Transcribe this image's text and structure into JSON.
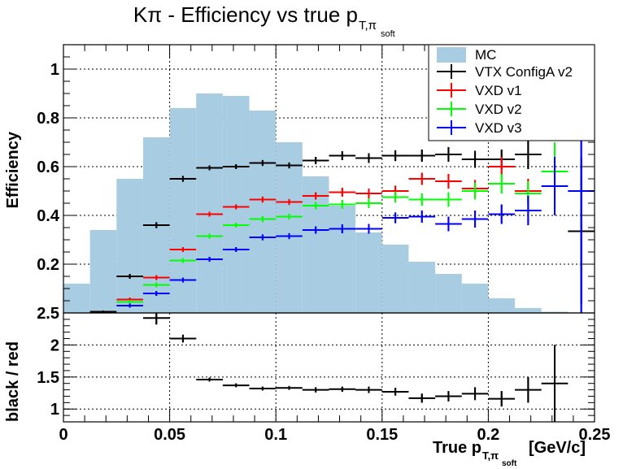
{
  "chart_data": [
    {
      "type": "bar",
      "title": "Kπ - Efficiency vs true p",
      "title_sub": "T,π",
      "title_subsub": "soft",
      "ylabel": "Efficiency",
      "xlim": [
        0,
        0.25
      ],
      "ylim": [
        0,
        1.1
      ],
      "yticks": [
        0.2,
        0.4,
        0.6,
        0.8,
        1
      ],
      "ytick_labels": [
        "0.2",
        "0.4",
        "0.6",
        "0.8",
        "1"
      ],
      "grid": true,
      "legend_position": "top-right",
      "histogram": {
        "name": "MC",
        "color": "#a8cce2",
        "bin_width": 0.0125,
        "x": [
          0.00625,
          0.01875,
          0.03125,
          0.04375,
          0.05625,
          0.06875,
          0.08125,
          0.09375,
          0.10625,
          0.11875,
          0.13125,
          0.14375,
          0.15625,
          0.16875,
          0.18125,
          0.19375,
          0.20625,
          0.21875,
          0.23125
        ],
        "values": [
          0.12,
          0.34,
          0.55,
          0.72,
          0.84,
          0.9,
          0.89,
          0.83,
          0.7,
          0.56,
          0.44,
          0.33,
          0.28,
          0.21,
          0.16,
          0.12,
          0.06,
          0.02,
          0.005
        ]
      },
      "series": [
        {
          "name": "VTX ConfigA v2",
          "color": "#000000",
          "x": [
            0.00625,
            0.01875,
            0.03125,
            0.04375,
            0.05625,
            0.06875,
            0.08125,
            0.09375,
            0.10625,
            0.11875,
            0.13125,
            0.14375,
            0.15625,
            0.16875,
            0.18125,
            0.19375,
            0.20625,
            0.21875,
            0.23125,
            0.24375
          ],
          "values": [
            null,
            0.005,
            0.15,
            0.36,
            0.55,
            0.595,
            0.6,
            0.615,
            0.605,
            0.625,
            0.645,
            0.635,
            0.645,
            0.645,
            0.65,
            0.63,
            0.63,
            0.65,
            null,
            0.335
          ],
          "yerr": [
            0,
            0.005,
            0.01,
            0.012,
            0.012,
            0.01,
            0.01,
            0.012,
            0.012,
            0.015,
            0.018,
            0.02,
            0.022,
            0.025,
            0.03,
            0.035,
            0.04,
            0.06,
            0,
            0.3
          ]
        },
        {
          "name": "VXD v1",
          "color": "#ff0000",
          "x": [
            0.03125,
            0.04375,
            0.05625,
            0.06875,
            0.08125,
            0.09375,
            0.10625,
            0.11875,
            0.13125,
            0.14375,
            0.15625,
            0.16875,
            0.18125,
            0.19375,
            0.20625,
            0.21875
          ],
          "values": [
            0.055,
            0.145,
            0.26,
            0.405,
            0.435,
            0.465,
            0.455,
            0.48,
            0.495,
            0.49,
            0.5,
            0.55,
            0.54,
            0.51,
            0.6,
            0.5
          ],
          "yerr": [
            0.008,
            0.01,
            0.01,
            0.01,
            0.01,
            0.012,
            0.012,
            0.015,
            0.018,
            0.02,
            0.022,
            0.025,
            0.03,
            0.035,
            0.04,
            0.05
          ]
        },
        {
          "name": "VXD v2",
          "color": "#00ff00",
          "x": [
            0.03125,
            0.04375,
            0.05625,
            0.06875,
            0.08125,
            0.09375,
            0.10625,
            0.11875,
            0.13125,
            0.14375,
            0.15625,
            0.16875,
            0.18125,
            0.19375,
            0.20625,
            0.21875,
            0.23125
          ],
          "values": [
            0.045,
            0.115,
            0.215,
            0.315,
            0.36,
            0.385,
            0.395,
            0.44,
            0.445,
            0.45,
            0.475,
            0.465,
            0.465,
            0.5,
            0.53,
            0.49,
            0.58
          ],
          "yerr": [
            0.008,
            0.01,
            0.01,
            0.01,
            0.01,
            0.012,
            0.012,
            0.015,
            0.018,
            0.02,
            0.022,
            0.025,
            0.03,
            0.035,
            0.04,
            0.05,
            0.12
          ]
        },
        {
          "name": "VXD v3",
          "color": "#0000ff",
          "x": [
            0.03125,
            0.04375,
            0.05625,
            0.06875,
            0.08125,
            0.09375,
            0.10625,
            0.11875,
            0.13125,
            0.14375,
            0.15625,
            0.16875,
            0.18125,
            0.19375,
            0.20625,
            0.21875,
            0.23125,
            0.24375
          ],
          "values": [
            0.03,
            0.08,
            0.135,
            0.22,
            0.26,
            0.31,
            0.315,
            0.34,
            0.345,
            0.345,
            0.39,
            0.395,
            0.365,
            0.385,
            0.405,
            0.42,
            0.52,
            0.5
          ],
          "yerr": [
            0.008,
            0.01,
            0.01,
            0.01,
            0.01,
            0.012,
            0.012,
            0.015,
            0.018,
            0.02,
            0.022,
            0.025,
            0.03,
            0.035,
            0.04,
            0.06,
            0.12,
            0.5
          ]
        }
      ]
    },
    {
      "type": "scatter",
      "ylabel": "black / red",
      "xlabel": "True p",
      "xlabel_sub": "T,π",
      "xlabel_subsub": "soft",
      "xlabel_unit": "[GeV/c]",
      "xlim": [
        0,
        0.25
      ],
      "ylim": [
        0.8,
        2.5
      ],
      "xticks": [
        0,
        0.05,
        0.1,
        0.15,
        0.2,
        0.25
      ],
      "xtick_labels": [
        "0",
        "0.05",
        "0.1",
        "0.15",
        "0.2",
        "0.25"
      ],
      "yticks": [
        1,
        1.5,
        2,
        2.5
      ],
      "ytick_labels": [
        "1",
        "1.5",
        "2",
        "2.5"
      ],
      "grid": true,
      "series": [
        {
          "name": "black / red",
          "color": "#000000",
          "x": [
            0.04375,
            0.05625,
            0.06875,
            0.08125,
            0.09375,
            0.10625,
            0.11875,
            0.13125,
            0.14375,
            0.15625,
            0.16875,
            0.18125,
            0.19375,
            0.20625,
            0.21875,
            0.23125
          ],
          "values": [
            2.42,
            2.1,
            1.46,
            1.37,
            1.32,
            1.33,
            1.3,
            1.31,
            1.3,
            1.27,
            1.17,
            1.2,
            1.24,
            1.16,
            1.3,
            1.4
          ],
          "yerr": [
            0.1,
            0.06,
            0.03,
            0.03,
            0.03,
            0.03,
            0.04,
            0.04,
            0.05,
            0.06,
            0.07,
            0.08,
            0.1,
            0.12,
            0.2,
            0.6
          ]
        }
      ]
    }
  ]
}
